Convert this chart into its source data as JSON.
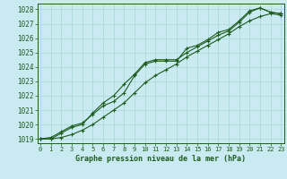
{
  "title": "Graphe pression niveau de la mer (hPa)",
  "background_color": "#c8eaf0",
  "grid_color": "#a8d8d8",
  "line_color": "#1e5c1e",
  "ylim": [
    1018.7,
    1028.4
  ],
  "xlim": [
    -0.3,
    23.3
  ],
  "yticks": [
    1019,
    1020,
    1021,
    1022,
    1023,
    1024,
    1025,
    1026,
    1027,
    1028
  ],
  "xticks": [
    0,
    1,
    2,
    3,
    4,
    5,
    6,
    7,
    8,
    9,
    10,
    11,
    12,
    13,
    14,
    15,
    16,
    17,
    18,
    19,
    20,
    21,
    22,
    23
  ],
  "series": [
    {
      "x": [
        0,
        1,
        2,
        3,
        4,
        5,
        6,
        7,
        8,
        9,
        10,
        11,
        12,
        13,
        14,
        15,
        16,
        17,
        18,
        19,
        20,
        21,
        22,
        23
      ],
      "y": [
        1019.0,
        1019.0,
        1019.4,
        1019.8,
        1020.0,
        1020.8,
        1021.5,
        1022.0,
        1022.8,
        1023.5,
        1024.3,
        1024.5,
        1024.5,
        1024.5,
        1025.0,
        1025.4,
        1025.8,
        1026.2,
        1026.5,
        1027.1,
        1027.8,
        1028.1,
        1027.8,
        1027.7
      ]
    },
    {
      "x": [
        0,
        1,
        2,
        3,
        4,
        5,
        6,
        7,
        8,
        9,
        10,
        11,
        12,
        13,
        14,
        15,
        16,
        17,
        18,
        19,
        20,
        21,
        22,
        23
      ],
      "y": [
        1019.0,
        1019.1,
        1019.5,
        1019.9,
        1020.1,
        1020.7,
        1021.3,
        1021.6,
        1022.2,
        1023.4,
        1024.2,
        1024.4,
        1024.4,
        1024.4,
        1025.3,
        1025.5,
        1025.9,
        1026.4,
        1026.6,
        1027.2,
        1027.9,
        1028.1,
        1027.8,
        1027.7
      ]
    },
    {
      "x": [
        0,
        1,
        2,
        3,
        4,
        5,
        6,
        7,
        8,
        9,
        10,
        11,
        12,
        13,
        14,
        15,
        16,
        17,
        18,
        19,
        20,
        21,
        22,
        23
      ],
      "y": [
        1019.0,
        1019.0,
        1019.1,
        1019.3,
        1019.6,
        1020.0,
        1020.5,
        1021.0,
        1021.5,
        1022.2,
        1022.9,
        1023.4,
        1023.8,
        1024.2,
        1024.7,
        1025.1,
        1025.5,
        1025.9,
        1026.3,
        1026.8,
        1027.2,
        1027.5,
        1027.7,
        1027.6
      ]
    }
  ]
}
